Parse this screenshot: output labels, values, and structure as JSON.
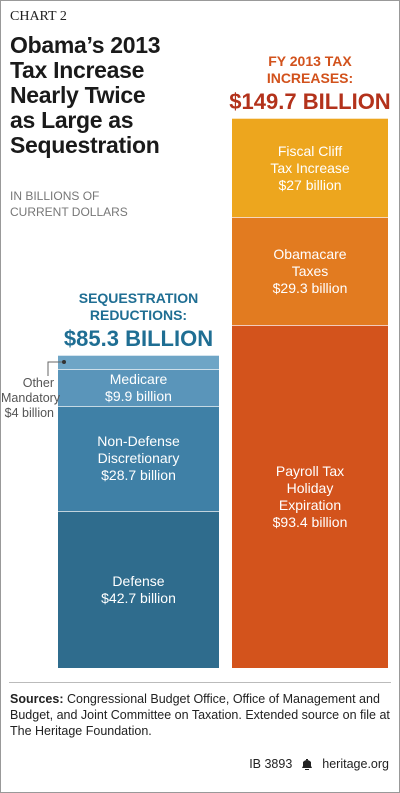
{
  "chart_label": "CHART 2",
  "chart_data": {
    "type": "stacked-column",
    "title": "Obama’s 2013\nTax Increase\nNearly Twice\nas Large as\nSequestration",
    "subtitle": "IN BILLIONS OF\nCURRENT DOLLARS",
    "stacks": [
      {
        "title": "SEQUESTRATION\nREDUCTIONS:",
        "total_label": "$85.3 BILLION",
        "color": "#1f6e93",
        "segments": [
          {
            "name": "Defense",
            "value": 42.7,
            "value_label": "$42.7 billion",
            "color": "#2f6c8d"
          },
          {
            "name": "Non-Defense\nDiscretionary",
            "value": 28.7,
            "value_label": "$28.7 billion",
            "color": "#3f80a6"
          },
          {
            "name": "Medicare",
            "value": 9.9,
            "value_label": "$9.9 billion",
            "color": "#5a95ba"
          },
          {
            "name": "Other\nMandatory",
            "value": 4,
            "value_label": "$4 billion",
            "color": "#6ea5c6"
          }
        ]
      },
      {
        "title": "FY 2013 TAX\nINCREASES:",
        "total_label": "$149.7 BILLION",
        "color": "#d2521c",
        "total_color": "#b3321b",
        "segments": [
          {
            "name": "Payroll Tax\nHoliday\nExpiration",
            "value": 93.4,
            "value_label": "$93.4 billion",
            "color": "#d3531c"
          },
          {
            "name": "Obamacare\nTaxes",
            "value": 29.3,
            "value_label": "$29.3 billion",
            "color": "#e27b20"
          },
          {
            "name": "Fiscal Cliff\nTax Increase",
            "value": 27,
            "value_label": "$27 billion",
            "color": "#eda61e"
          }
        ]
      }
    ]
  },
  "footer": {
    "source_label": "Sources:",
    "source": "Congressional Budget Office, Office of Management and Budget, and Joint Committee on Taxation. Extended source on file at The Heritage Foundation.",
    "id": "IB 3893",
    "site": "heritage.org"
  }
}
